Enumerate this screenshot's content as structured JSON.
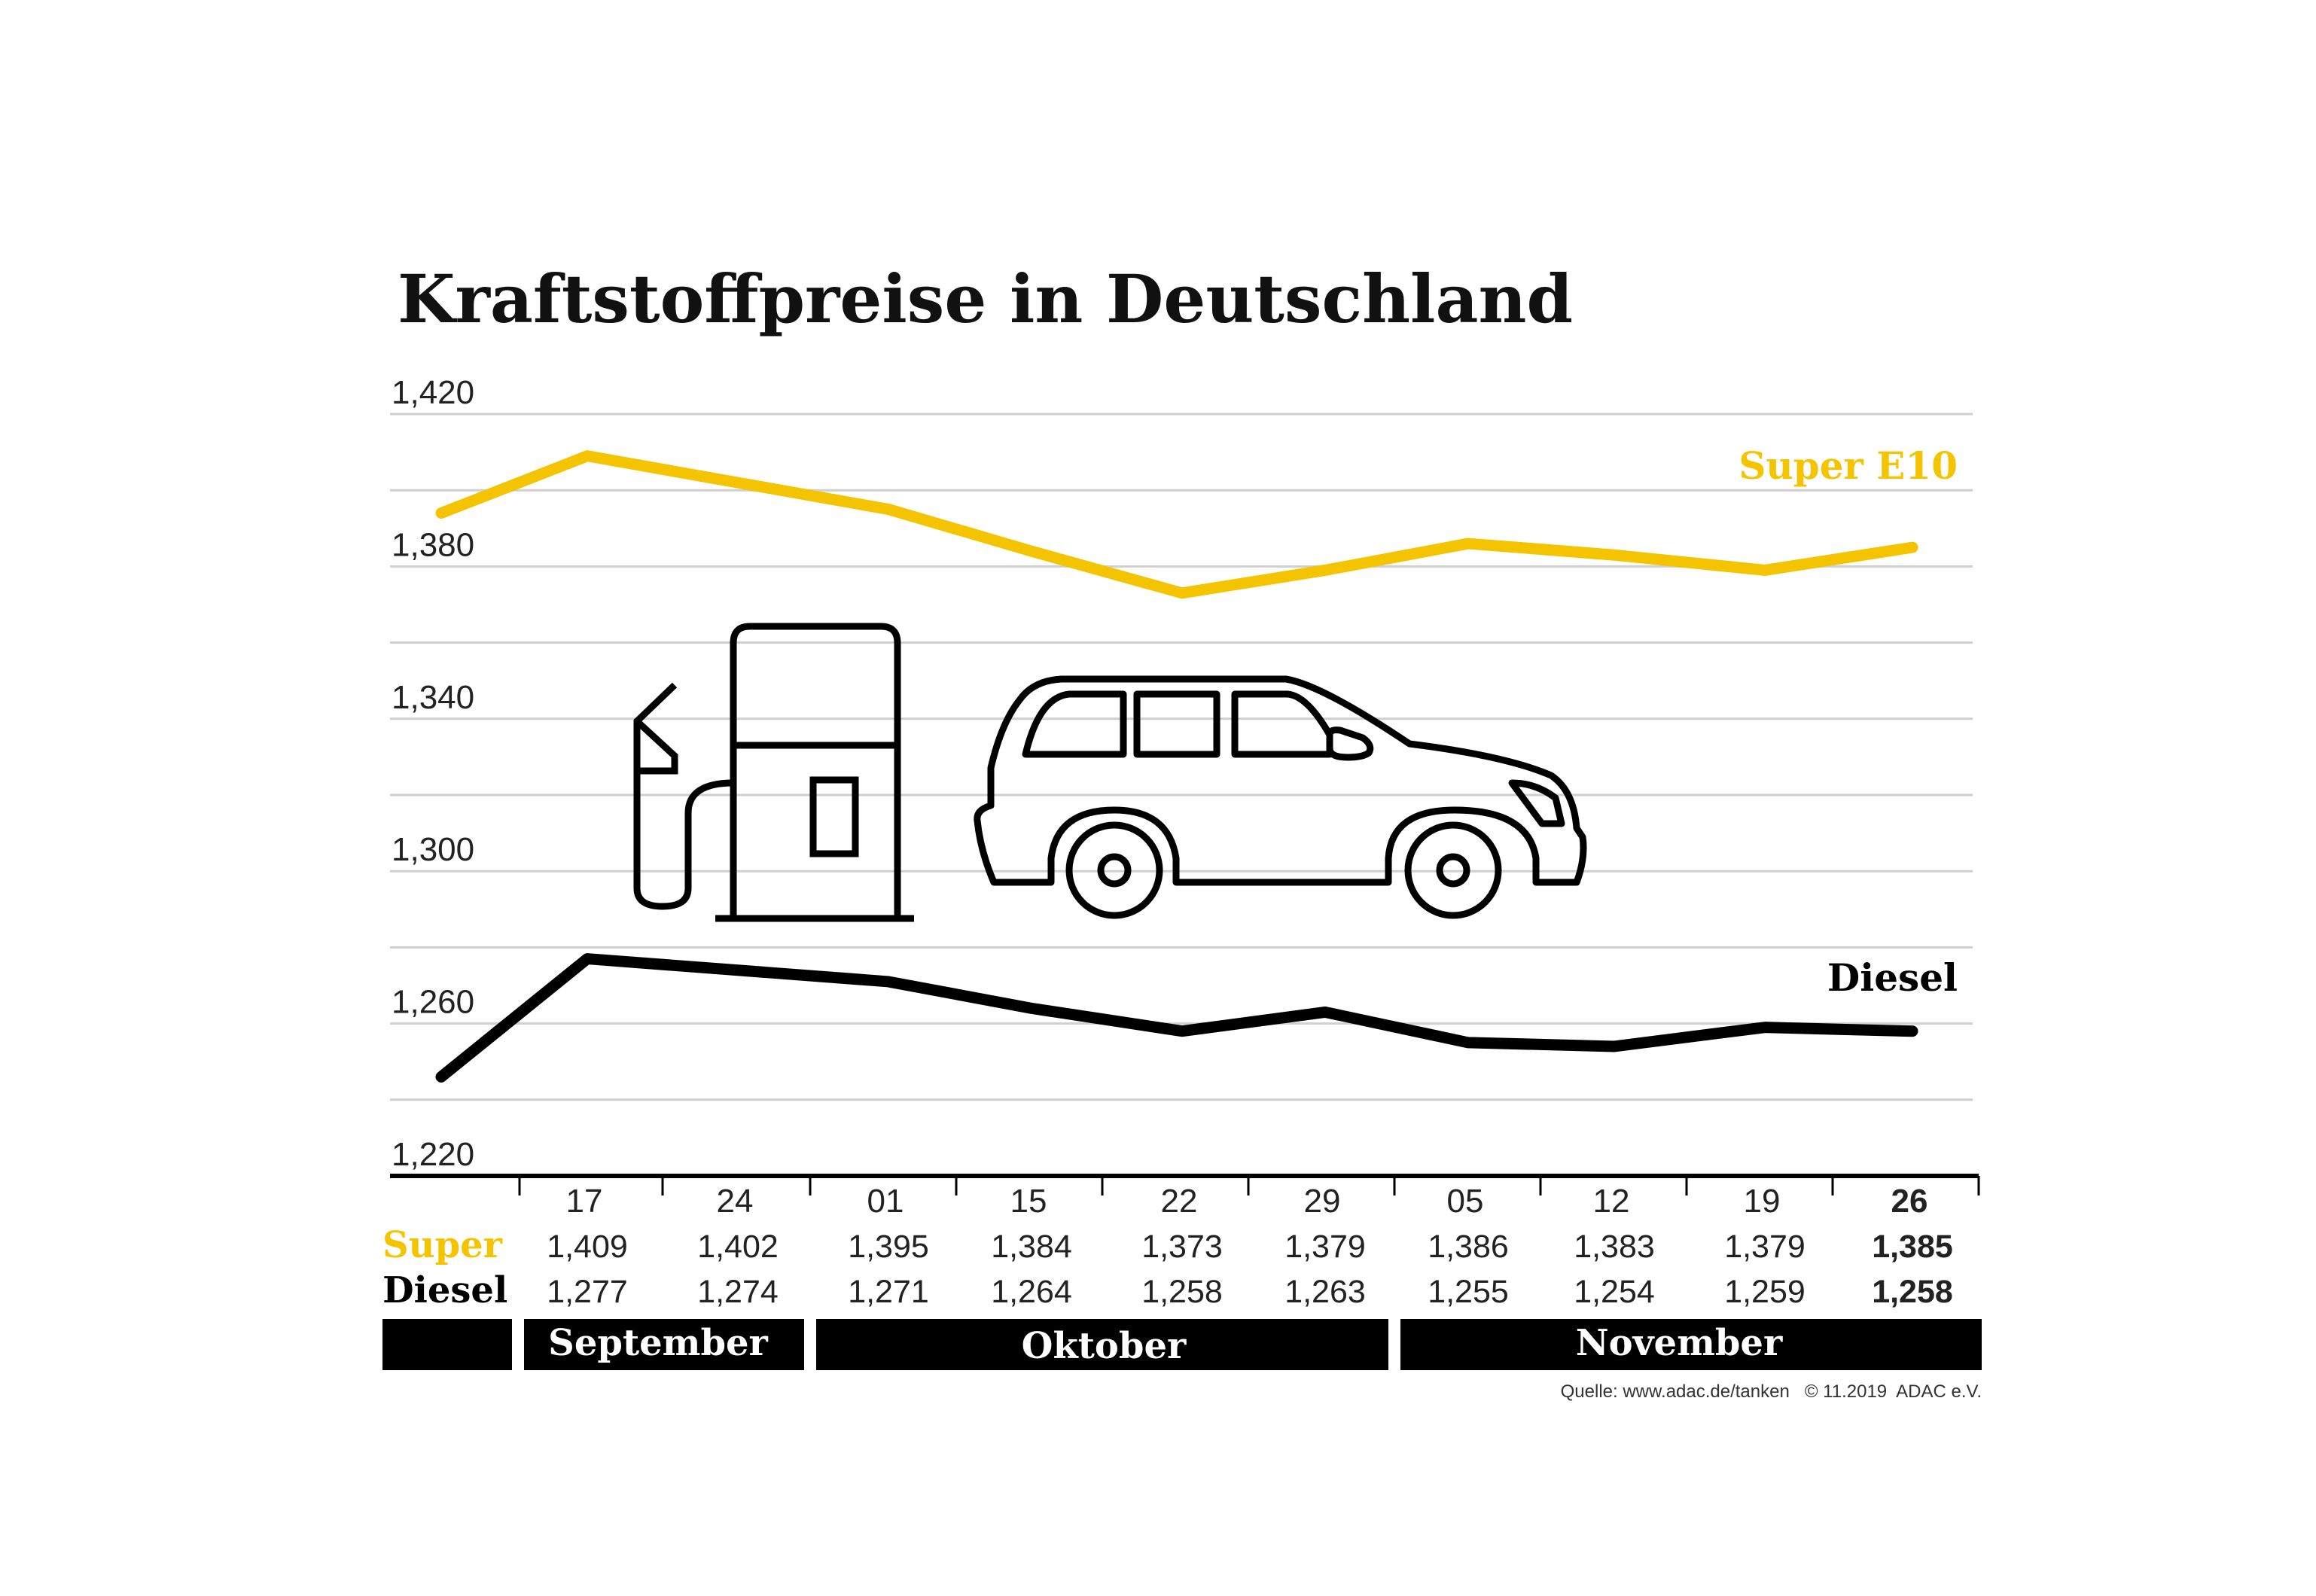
{
  "chart_data": {
    "type": "line",
    "title": "Kraftstoffpreise in Deutschland",
    "x": [
      "",
      "17",
      "24",
      "01",
      "15",
      "22",
      "29",
      "05",
      "12",
      "19",
      "26"
    ],
    "series": [
      {
        "name": "Super E10",
        "row_label": "Super",
        "color": "#F5C400",
        "values": [
          1.394,
          1.409,
          1.402,
          1.395,
          1.384,
          1.373,
          1.379,
          1.386,
          1.383,
          1.379,
          1.385
        ],
        "labels": [
          "",
          "1,409",
          "1,402",
          "1,395",
          "1,384",
          "1,373",
          "1,379",
          "1,386",
          "1,383",
          "1,379",
          "1,385"
        ]
      },
      {
        "name": "Diesel",
        "row_label": "Diesel",
        "color": "#000000",
        "values": [
          1.246,
          1.277,
          1.274,
          1.271,
          1.264,
          1.258,
          1.263,
          1.255,
          1.254,
          1.259,
          1.258
        ],
        "labels": [
          "",
          "1,277",
          "1,274",
          "1,271",
          "1,264",
          "1,258",
          "1,263",
          "1,255",
          "1,254",
          "1,259",
          "1,258"
        ]
      }
    ],
    "ylim": [
      1.22,
      1.42
    ],
    "yticks": [
      "1,420",
      "1,380",
      "1,340",
      "1,300",
      "1,260",
      "1,220"
    ],
    "ytick_values": [
      1.42,
      1.38,
      1.34,
      1.3,
      1.26,
      1.22
    ],
    "grid": true,
    "highlight_last": true,
    "months": [
      "September",
      "Oktober",
      "November"
    ],
    "source": "Quelle: www.adac.de/tanken   © 11.2019  ADAC e.V.",
    "icons": [
      "fuel-pump-icon",
      "car-icon"
    ]
  }
}
